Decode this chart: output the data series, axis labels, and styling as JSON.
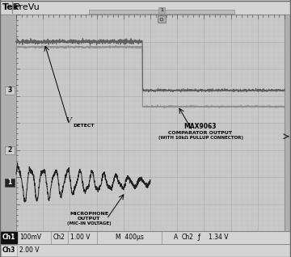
{
  "fig_w": 3.6,
  "fig_h": 3.18,
  "dpi": 100,
  "outer_bg": "#b0b0b0",
  "header_bg": "#d4d4d4",
  "grid_bg": "#c8c8c8",
  "status_bg": "#d4d4d4",
  "grid_line_major": "#a8a8a8",
  "grid_line_minor": "#bcbcbc",
  "border_color": "#888888",
  "header_text_bold": "Tek",
  "header_text_normal": " PreVu",
  "header_fontsize": 8,
  "n_cols": 10,
  "n_rows": 8,
  "wf_ch3_color": "#606060",
  "wf_comp_color": "#909090",
  "wf_ch1_color": "#202020",
  "status_ch1_label": "Ch1",
  "status_ch1_val": "100mV",
  "status_ch2_label": "Ch2",
  "status_ch2_val": "1.00 V",
  "status_m": "M",
  "status_time": "400μs",
  "status_a": "A",
  "status_trig": "Ch2",
  "status_slope": "ƒ",
  "status_trigval": "1.34 V",
  "status_ch3_label": "Ch3",
  "status_ch3_val": "2.00 V",
  "label_vdetect_V": "V",
  "label_vdetect_sub": "DETECT",
  "label_comp1": "MAX9063",
  "label_comp2": "COMPARATOR OUTPUT",
  "label_comp3": "(WITH 10kΩ PULLUP CONNECTOR)",
  "label_mic1": "MICROPHONE",
  "label_mic2": "OUTPUT",
  "label_mic3": "(MIC-IN VOLTAGE)"
}
